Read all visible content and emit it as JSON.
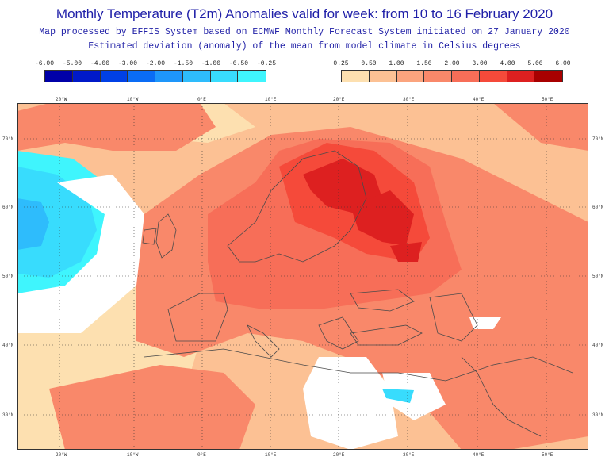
{
  "header": {
    "title": "Monthly Temperature (T2m) Anomalies valid for week: from 10 to 16 February 2020",
    "subtitle1": "Map processed by EFFIS System based on ECMWF Monthly Forecast System initiated on 27 January 2020",
    "subtitle2": "Estimated deviation (anomaly) of the mean from model climate in Celsius degrees"
  },
  "legend_negative": {
    "labels": [
      "-6.00",
      "-5.00",
      "-4.00",
      "-3.00",
      "-2.00",
      "-1.50",
      "-1.00",
      "-0.50",
      "-0.25"
    ],
    "colors": [
      "#0000a8",
      "#0019c8",
      "#0040e6",
      "#0a6cf5",
      "#1e96fa",
      "#2ebcfc",
      "#38dcfd",
      "#3ff5fd"
    ]
  },
  "legend_positive": {
    "labels": [
      "0.25",
      "0.50",
      "1.00",
      "1.50",
      "2.00",
      "3.00",
      "4.00",
      "5.00",
      "6.00"
    ],
    "colors": [
      "#fde0b0",
      "#fcc194",
      "#fba47e",
      "#f9886a",
      "#f76e58",
      "#f54a3a",
      "#dd2020",
      "#a80000"
    ]
  },
  "map": {
    "lon_labels": [
      "20°W",
      "10°W",
      "0°E",
      "10°E",
      "20°E",
      "30°E",
      "40°E",
      "50°E"
    ],
    "lat_labels": [
      "70°N",
      "60°N",
      "50°N",
      "40°N",
      "30°N"
    ]
  }
}
